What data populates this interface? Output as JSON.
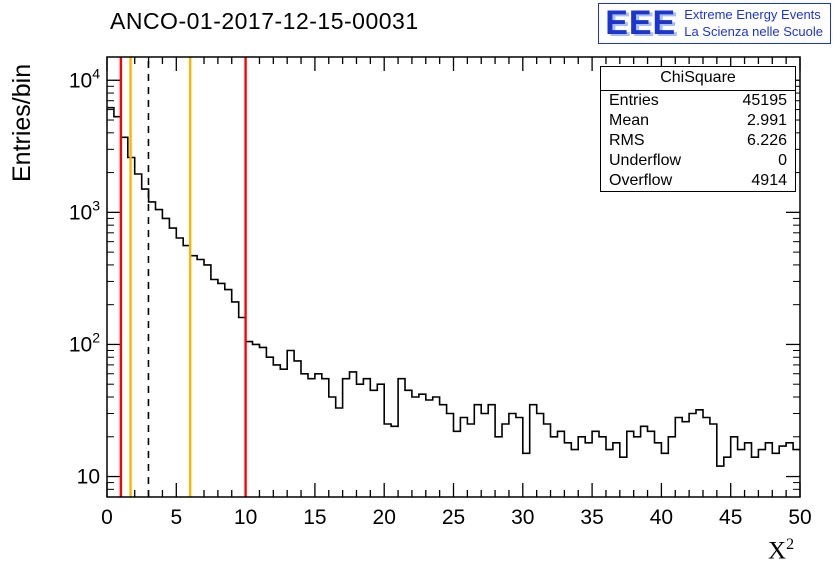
{
  "header": {
    "logo": {
      "letters": "EEE",
      "line1": "Extreme Energy Events",
      "line2": "La Scienza nelle Scuole",
      "color": "#1d35cf"
    }
  },
  "stats": {
    "title": "ChiSquare",
    "rows": [
      {
        "label": "Entries",
        "value": "45195"
      },
      {
        "label": "Mean",
        "value": "2.991"
      },
      {
        "label": "RMS",
        "value": "6.226"
      },
      {
        "label": "Underflow",
        "value": "0"
      },
      {
        "label": "Overflow",
        "value": "4914"
      }
    ]
  },
  "labels": {
    "x_base": "X",
    "x_exp": "2"
  },
  "chart_data": {
    "type": "bar",
    "style": "step-histogram",
    "title": "ANCO-01-2017-12-15-00031",
    "xlabel": "X^2",
    "ylabel": "Entries/bin",
    "xlim": [
      0,
      50
    ],
    "ylim": [
      7,
      15000
    ],
    "yscale": "log",
    "grid": false,
    "bin_start": 0,
    "bin_width": 0.5,
    "x_ticks": [
      0,
      5,
      10,
      15,
      20,
      25,
      30,
      35,
      40,
      45,
      50
    ],
    "y_ticks": [
      10,
      100,
      1000,
      10000
    ],
    "line_color": "#000000",
    "values": [
      6200,
      5300,
      3700,
      2600,
      1950,
      1500,
      1200,
      1050,
      900,
      760,
      640,
      560,
      470,
      440,
      400,
      310,
      290,
      260,
      210,
      160,
      105,
      100,
      95,
      80,
      70,
      65,
      90,
      75,
      60,
      55,
      60,
      55,
      40,
      33,
      55,
      62,
      50,
      55,
      45,
      50,
      25,
      24,
      55,
      45,
      40,
      42,
      38,
      40,
      35,
      30,
      22,
      28,
      25,
      35,
      30,
      35,
      20,
      25,
      30,
      28,
      15,
      35,
      30,
      25,
      20,
      22,
      18,
      16,
      20,
      18,
      22,
      20,
      16,
      18,
      14,
      22,
      20,
      24,
      22,
      18,
      15,
      20,
      28,
      26,
      30,
      32,
      28,
      25,
      12,
      14,
      20,
      16,
      18,
      14,
      16,
      18,
      15,
      17,
      18,
      16
    ],
    "vlines": [
      {
        "x": 1.0,
        "color": "#ff0000",
        "style": "solid"
      },
      {
        "x": 1.7,
        "color": "#ffb300",
        "style": "solid"
      },
      {
        "x": 2.991,
        "color": "#000000",
        "style": "dashed"
      },
      {
        "x": 6.0,
        "color": "#ffb300",
        "style": "solid"
      },
      {
        "x": 10.0,
        "color": "#ff0000",
        "style": "solid"
      }
    ],
    "legend": null
  }
}
